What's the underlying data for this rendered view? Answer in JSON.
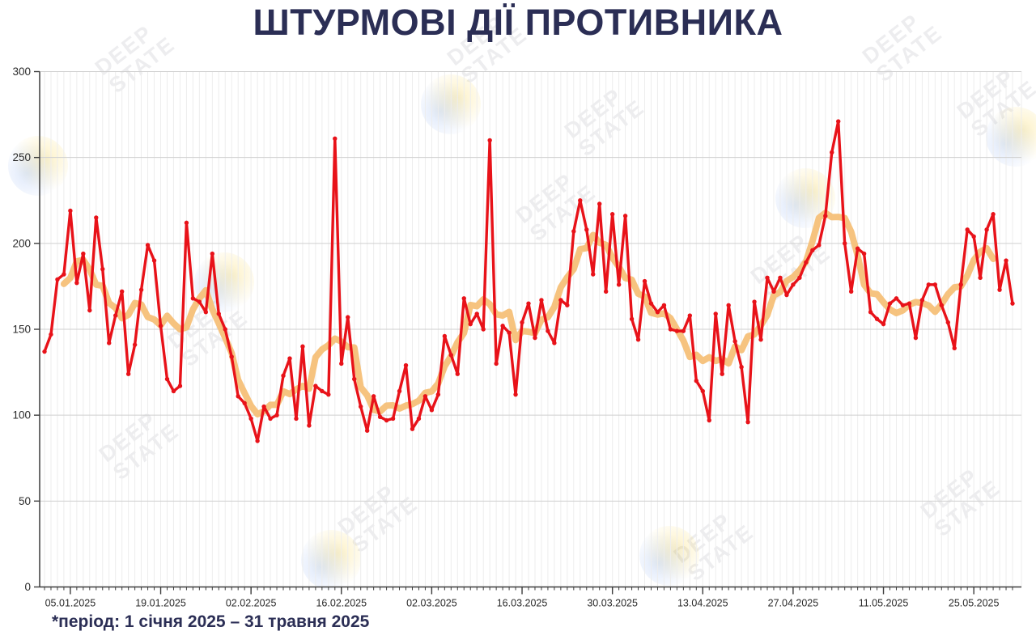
{
  "title": "ШТУРМОВІ ДІЇ ПРОТИВНИКА",
  "footnote": "*період: 1 січня 2025 – 31 травня 2025",
  "watermark": {
    "line1": "DEEP",
    "line2": "STATE"
  },
  "colors": {
    "background": "#ffffff",
    "title_text": "#2b2e55",
    "daily_line": "#e81219",
    "average_line": "#f6c078",
    "grid_minor": "#ededed",
    "grid_major": "#cfcfcf",
    "axis": "#3c3c3c",
    "tick_label": "#2a2a2a"
  },
  "chart_data": {
    "type": "line",
    "title": "ШТУРМОВІ ДІЇ ПРОТИВНИКА",
    "x_start_date": "01.01.2025",
    "x_end_date": "31.05.2025",
    "x_tick_labels": [
      "05.01.2025",
      "19.01.2025",
      "02.02.2025",
      "16.02.2025",
      "02.03.2025",
      "16.03.2025",
      "30.03.2025",
      "13.04.2025",
      "27.04.2025",
      "11.05.2025",
      "25.05.2025"
    ],
    "x_tick_day_index": [
      5,
      19,
      33,
      47,
      61,
      75,
      89,
      103,
      117,
      131,
      145
    ],
    "y_ticks": [
      0,
      50,
      100,
      150,
      200,
      250,
      300
    ],
    "ylim": [
      0,
      300
    ],
    "grid": "on",
    "legend": "none",
    "series": [
      {
        "name": "daily-assaults",
        "style": "line-with-markers",
        "color": "#e81219",
        "values": [
          137,
          147,
          179,
          182,
          219,
          177,
          194,
          161,
          215,
          185,
          142,
          158,
          172,
          124,
          141,
          173,
          199,
          190,
          152,
          121,
          114,
          117,
          212,
          168,
          166,
          160,
          194,
          159,
          150,
          134,
          111,
          107,
          98,
          85,
          105,
          98,
          100,
          123,
          133,
          98,
          140,
          94,
          117,
          114,
          112,
          261,
          130,
          157,
          121,
          105,
          91,
          111,
          99,
          97,
          98,
          114,
          129,
          92,
          98,
          111,
          103,
          112,
          146,
          135,
          124,
          168,
          153,
          159,
          150,
          260,
          130,
          152,
          148,
          112,
          154,
          165,
          145,
          167,
          149,
          142,
          167,
          164,
          207,
          225,
          208,
          182,
          223,
          172,
          217,
          176,
          216,
          156,
          144,
          178,
          165,
          160,
          164,
          150,
          149,
          149,
          158,
          120,
          114,
          97,
          159,
          124,
          164,
          143,
          128,
          96,
          166,
          144,
          180,
          172,
          180,
          170,
          176,
          180,
          189,
          196,
          199,
          216,
          253,
          271,
          200,
          172,
          197,
          194,
          160,
          156,
          153,
          165,
          168,
          164,
          165,
          145,
          167,
          176,
          176,
          164,
          154,
          139,
          176,
          208,
          204,
          180,
          208,
          217,
          173,
          190,
          165
        ]
      },
      {
        "name": "7-day-moving-average",
        "style": "smooth-line",
        "color": "#f6c078",
        "derived_from": "daily-assaults",
        "window": 7
      }
    ]
  }
}
